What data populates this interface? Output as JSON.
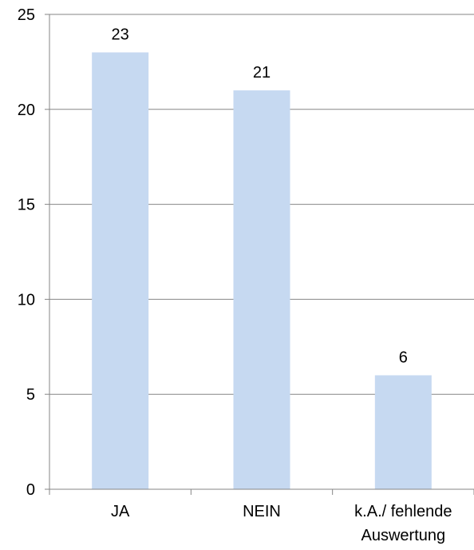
{
  "chart_data": {
    "type": "bar",
    "categories": [
      "JA",
      "NEIN",
      "k.A./ fehlende Auswertung"
    ],
    "category_label_lines": [
      [
        "JA"
      ],
      [
        "NEIN"
      ],
      [
        "k.A./ fehlende",
        "Auswertung"
      ]
    ],
    "values": [
      23,
      21,
      6
    ],
    "data_labels": [
      "23",
      "21",
      "6"
    ],
    "title": "",
    "xlabel": "",
    "ylabel": "",
    "ylim": [
      0,
      25
    ],
    "yticks": [
      0,
      5,
      10,
      15,
      20,
      25
    ],
    "ytick_labels": [
      "0",
      "5",
      "10",
      "15",
      "20",
      "25"
    ],
    "grid": true,
    "legend": "none",
    "colors": {
      "bar": "#c6d9f1",
      "grid": "#868686",
      "axis": "#868686",
      "text": "#000000"
    }
  }
}
